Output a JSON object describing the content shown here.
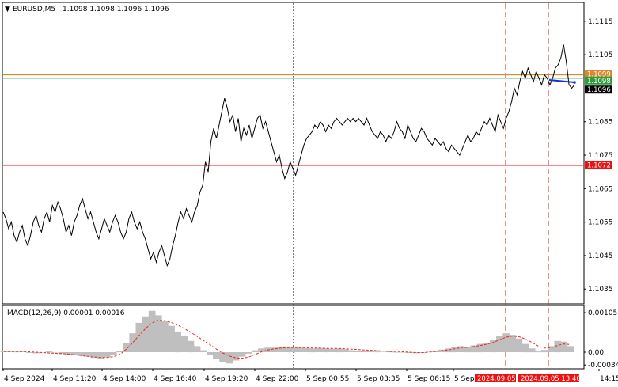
{
  "chart_title": {
    "symbol": "EURUSD,M5",
    "ohlc": "1.1098 1.1098 1.1096 1.1096",
    "dropdown_glyph": "▼"
  },
  "macd_title": "MACD(12,26,9) 0.00001 0.00016",
  "colors": {
    "price_line": "#000000",
    "orange_level": "#e0862a",
    "green_level": "#2e9b3d",
    "red_level": "#ee1111",
    "blue_trend": "#1030d0",
    "macd_hist": "#bfbfbf",
    "macd_signal": "#ee2222",
    "vline_red": "#cc2222",
    "tag_red": "#ee1111",
    "tag_black": "#000000",
    "tag_green": "#2e9b3d",
    "tag_orange": "#e0862a"
  },
  "chart_data": {
    "type": "line",
    "y_ticks": [
      "1.1115",
      "1.1105",
      "1.1085",
      "1.1075",
      "1.1065",
      "1.1055",
      "1.1045",
      "1.1035"
    ],
    "macd_ticks": [
      "0.00105",
      "0.00",
      "-0.00034"
    ],
    "x_ticks": [
      "4 Sep 2024",
      "4 Sep 11:20",
      "4 Sep 14:00",
      "4 Sep 16:40",
      "4 Sep 19:20",
      "4 Sep 22:00",
      "5 Sep 00:55",
      "5 Sep 03:35",
      "5 Sep 06:15",
      "5 Sep",
      "14:15"
    ],
    "x_highlight_labels": [
      "2024.09.05",
      "2024.09.05 13:40"
    ],
    "levels": [
      {
        "name": "orange",
        "value": 1.1099,
        "label": "1.1099",
        "color": "#e0862a"
      },
      {
        "name": "green",
        "value": 1.1098,
        "label": "1.1098",
        "color": "#2e9b3d"
      },
      {
        "name": "current",
        "value": 1.1096,
        "label": "1.1096",
        "color": "#000000"
      },
      {
        "name": "red",
        "value": 1.1072,
        "label": "1.1072",
        "color": "#ee1111"
      }
    ],
    "ylim": [
      1.10308,
      1.11204
    ],
    "price": [
      1.1058,
      1.1056,
      1.1053,
      1.1055,
      1.1051,
      1.1049,
      1.1052,
      1.1054,
      1.105,
      1.1048,
      1.1051,
      1.1055,
      1.1057,
      1.1054,
      1.1052,
      1.1056,
      1.1058,
      1.1055,
      1.106,
      1.1058,
      1.1061,
      1.1059,
      1.1056,
      1.1052,
      1.1054,
      1.1051,
      1.1055,
      1.1057,
      1.106,
      1.1062,
      1.1059,
      1.1056,
      1.1058,
      1.1055,
      1.1052,
      1.105,
      1.1053,
      1.1056,
      1.1054,
      1.1052,
      1.1055,
      1.1057,
      1.1055,
      1.1052,
      1.105,
      1.1052,
      1.1056,
      1.1058,
      1.1055,
      1.1053,
      1.1055,
      1.1052,
      1.105,
      1.1047,
      1.1044,
      1.1046,
      1.1043,
      1.1046,
      1.1048,
      1.1045,
      1.1042,
      1.1044,
      1.1048,
      1.1051,
      1.1055,
      1.1058,
      1.1056,
      1.1059,
      1.1057,
      1.1055,
      1.1058,
      1.106,
      1.1064,
      1.1066,
      1.1073,
      1.107,
      1.1079,
      1.1083,
      1.108,
      1.1084,
      1.1088,
      1.1092,
      1.1089,
      1.1085,
      1.1087,
      1.1082,
      1.1086,
      1.1079,
      1.1083,
      1.1081,
      1.1084,
      1.108,
      1.1083,
      1.1086,
      1.1087,
      1.1083,
      1.1085,
      1.1082,
      1.1079,
      1.1076,
      1.1073,
      1.1075,
      1.1071,
      1.1068,
      1.107,
      1.1073,
      1.1071,
      1.1069,
      1.1072,
      1.1075,
      1.1078,
      1.108,
      1.1081,
      1.1082,
      1.1084,
      1.1083,
      1.1085,
      1.1084,
      1.1082,
      1.1084,
      1.1083,
      1.1085,
      1.1086,
      1.1085,
      1.1084,
      1.1085,
      1.1086,
      1.1085,
      1.1086,
      1.1085,
      1.1086,
      1.1085,
      1.1084,
      1.1086,
      1.1084,
      1.1082,
      1.1081,
      1.108,
      1.1082,
      1.1081,
      1.1079,
      1.1081,
      1.108,
      1.1082,
      1.1085,
      1.1083,
      1.1082,
      1.108,
      1.1084,
      1.1082,
      1.108,
      1.1079,
      1.1081,
      1.1083,
      1.1082,
      1.108,
      1.1079,
      1.1078,
      1.108,
      1.1079,
      1.1078,
      1.1079,
      1.1077,
      1.1076,
      1.1078,
      1.1077,
      1.1076,
      1.1075,
      1.1077,
      1.1079,
      1.1081,
      1.1079,
      1.108,
      1.1082,
      1.1081,
      1.1083,
      1.1085,
      1.1084,
      1.1086,
      1.1084,
      1.1082,
      1.1087,
      1.1085,
      1.1083,
      1.1086,
      1.1088,
      1.1091,
      1.1095,
      1.1093,
      1.1097,
      1.11,
      1.1098,
      1.1101,
      1.1099,
      1.1097,
      1.11,
      1.1098,
      1.1096,
      1.1099,
      1.1098,
      1.1096,
      1.1098,
      1.1101,
      1.1102,
      1.1104,
      1.1108,
      1.1103,
      1.1096,
      1.1095,
      1.1096
    ]
  },
  "macd_data": {
    "ylim": [
      -0.00042,
      0.00122
    ],
    "hist": [
      3e-05,
      4e-05,
      2e-05,
      3e-05,
      -2e-05,
      -3e-05,
      -1e-05,
      2e-05,
      -1e-05,
      -4e-05,
      -6e-05,
      -8e-05,
      -9e-05,
      -0.00012,
      -0.00015,
      -0.00018,
      -0.00014,
      -8e-05,
      4e-05,
      0.00025,
      0.0005,
      0.00078,
      0.00095,
      0.0011,
      0.00098,
      0.00082,
      0.0007,
      0.00055,
      0.00042,
      0.0003,
      0.00016,
      5e-05,
      -8e-05,
      -0.00018,
      -0.00026,
      -0.0003,
      -0.00022,
      -0.00012,
      -4e-05,
      5e-05,
      0.0001,
      0.00012,
      0.00012,
      0.00013,
      0.00012,
      0.00011,
      0.00012,
      0.00011,
      0.0001,
      0.00011,
      0.0001,
      9e-05,
      0.0001,
      8e-05,
      5e-05,
      3e-05,
      4e-05,
      3e-05,
      2e-05,
      1e-05,
      2e-05,
      0.0,
      -1e-05,
      -2e-05,
      -3e-05,
      -2e-05,
      1e-05,
      4e-05,
      7e-05,
      0.0001,
      0.00014,
      0.00016,
      0.00014,
      0.00018,
      0.00022,
      0.00025,
      0.00034,
      0.00044,
      0.0005,
      0.00046,
      0.00036,
      0.00022,
      0.0001,
      2e-05,
      6e-05,
      0.00016,
      0.0003,
      0.00028,
      0.00016
    ],
    "signal": [
      2e-05,
      2e-05,
      2e-05,
      2e-05,
      1e-05,
      0.0,
      -1e-05,
      -2e-05,
      -3e-05,
      -4e-05,
      -5e-05,
      -7e-05,
      -9e-05,
      -0.00011,
      -0.00013,
      -0.00014,
      -0.00014,
      -0.00012,
      -6e-05,
      8e-05,
      0.00025,
      0.00045,
      0.00063,
      0.00078,
      0.00085,
      0.00084,
      0.00079,
      0.00072,
      0.00063,
      0.00053,
      0.00042,
      0.00031,
      0.0002,
      8e-05,
      -2e-05,
      -0.0001,
      -0.00015,
      -0.00016,
      -0.00013,
      -6e-05,
      1e-05,
      6e-05,
      9e-05,
      0.00011,
      0.00012,
      0.00012,
      0.00012,
      0.00012,
      0.00011,
      0.00011,
      0.0001,
      0.0001,
      0.0001,
      9e-05,
      8e-05,
      7e-05,
      6e-05,
      5e-05,
      4e-05,
      3e-05,
      2e-05,
      2e-05,
      1e-05,
      0.0,
      -1e-05,
      -1e-05,
      0.0,
      2e-05,
      4e-05,
      6e-05,
      9e-05,
      0.00012,
      0.00013,
      0.00015,
      0.00018,
      0.00021,
      0.00026,
      0.00033,
      0.0004,
      0.00043,
      0.00041,
      0.00035,
      0.00026,
      0.00016,
      0.00011,
      0.00012,
      0.00018,
      0.00022,
      0.0002
    ]
  }
}
